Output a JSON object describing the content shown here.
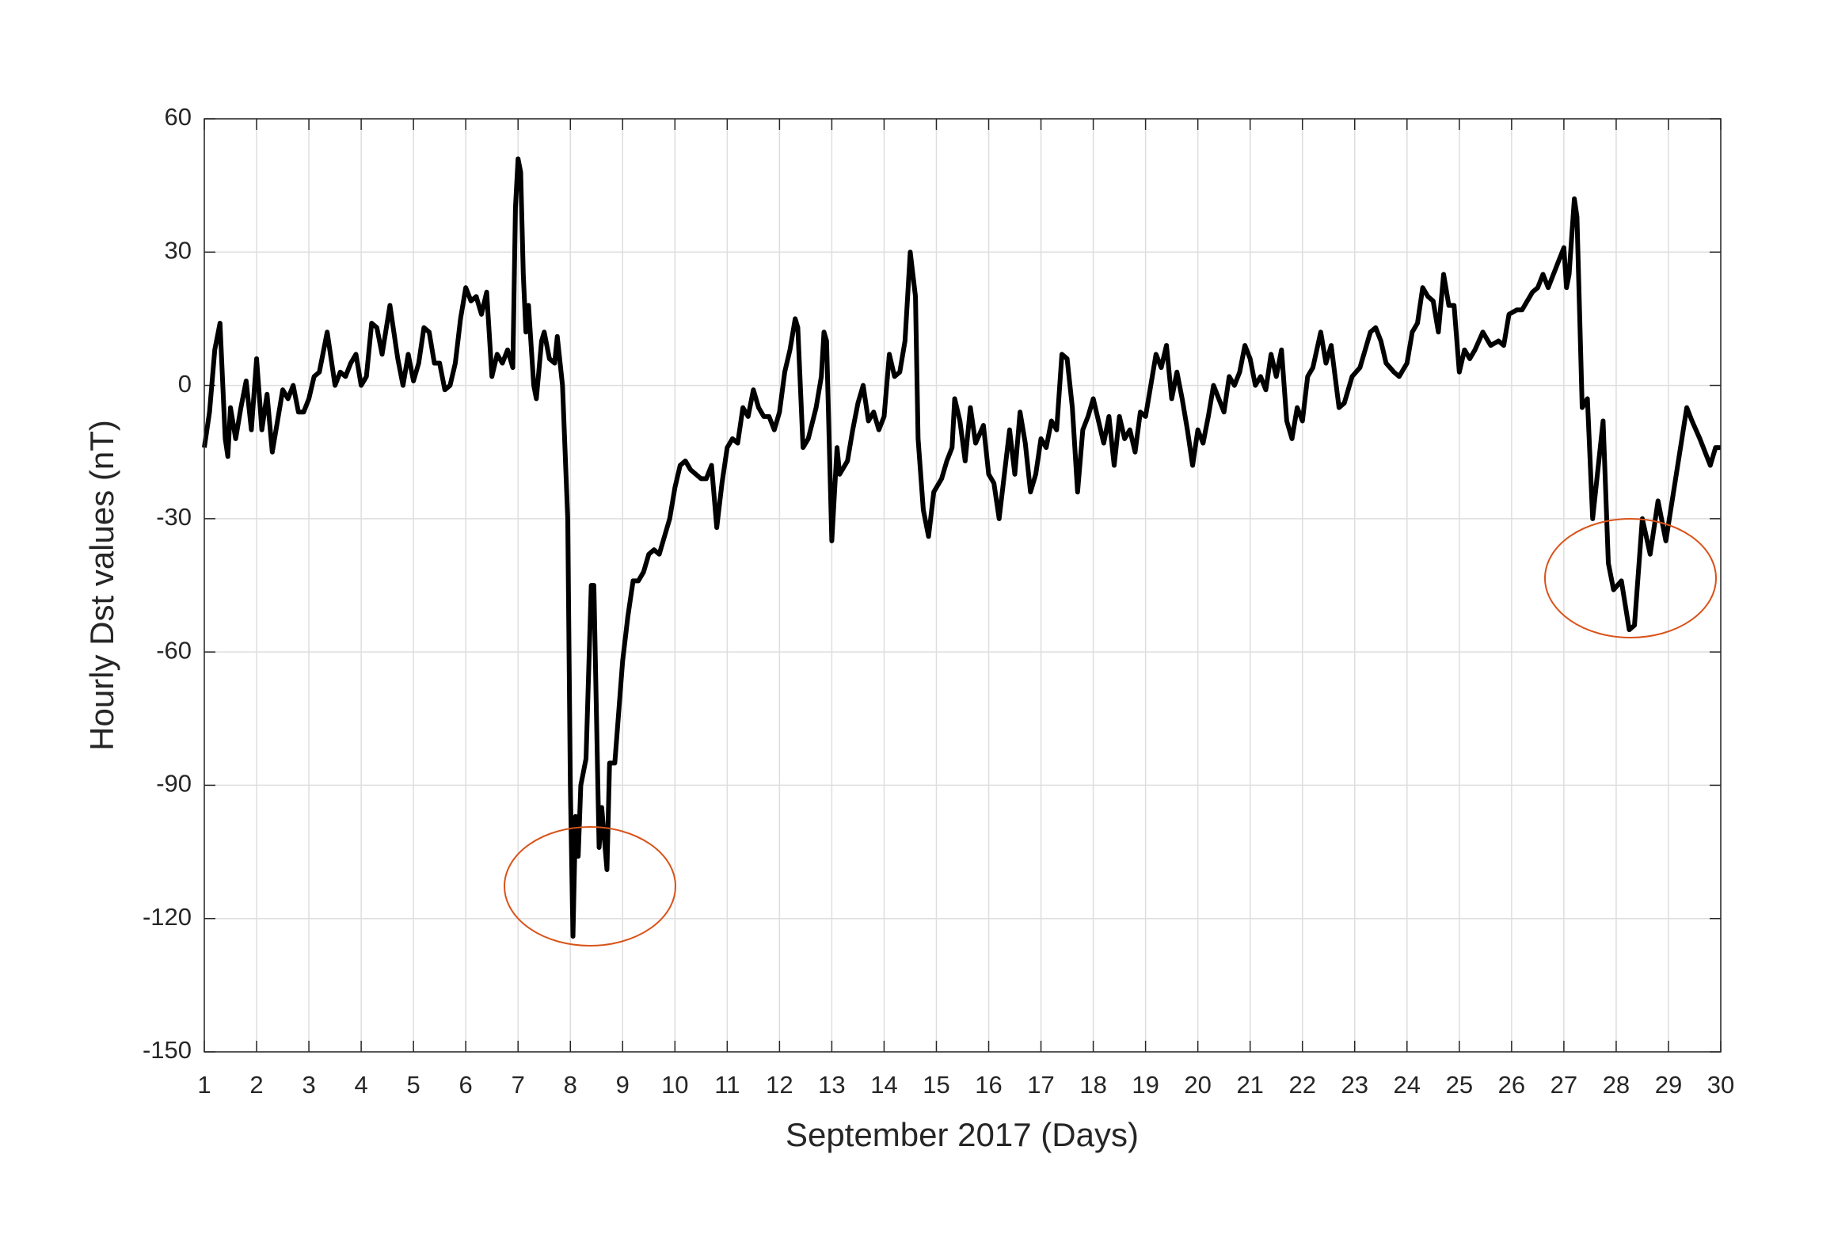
{
  "chart_data": {
    "type": "line",
    "x_label": "September 2017 (Days)",
    "y_label": "Hourly Dst values  (nT)",
    "xlim": [
      1,
      30
    ],
    "xticks": [
      1,
      2,
      3,
      4,
      5,
      6,
      7,
      8,
      9,
      10,
      11,
      12,
      13,
      14,
      15,
      16,
      17,
      18,
      19,
      20,
      21,
      22,
      23,
      24,
      25,
      26,
      27,
      28,
      29,
      30
    ],
    "ylim": [
      -150,
      60
    ],
    "yticks": [
      -150,
      -120,
      -90,
      -60,
      -30,
      0,
      30,
      60
    ],
    "grid": true,
    "series": [
      {
        "color": "#000000",
        "x": [
          1.0,
          1.1,
          1.2,
          1.3,
          1.4,
          1.45,
          1.5,
          1.6,
          1.7,
          1.8,
          1.9,
          2.0,
          2.1,
          2.2,
          2.3,
          2.4,
          2.5,
          2.6,
          2.7,
          2.8,
          2.9,
          3.0,
          3.1,
          3.2,
          3.35,
          3.5,
          3.6,
          3.7,
          3.8,
          3.9,
          4.0,
          4.1,
          4.2,
          4.3,
          4.4,
          4.55,
          4.7,
          4.8,
          4.9,
          5.0,
          5.1,
          5.2,
          5.3,
          5.4,
          5.5,
          5.6,
          5.7,
          5.8,
          5.9,
          6.0,
          6.1,
          6.2,
          6.3,
          6.4,
          6.5,
          6.6,
          6.7,
          6.8,
          6.9,
          6.95,
          7.0,
          7.05,
          7.1,
          7.15,
          7.2,
          7.3,
          7.35,
          7.45,
          7.5,
          7.6,
          7.7,
          7.75,
          7.85,
          7.95,
          8.0,
          8.05,
          8.1,
          8.15,
          8.2,
          8.3,
          8.4,
          8.45,
          8.55,
          8.6,
          8.7,
          8.75,
          8.85,
          9.0,
          9.1,
          9.2,
          9.3,
          9.4,
          9.5,
          9.6,
          9.7,
          9.8,
          9.9,
          10.0,
          10.1,
          10.2,
          10.3,
          10.4,
          10.5,
          10.6,
          10.7,
          10.8,
          10.9,
          11.0,
          11.1,
          11.2,
          11.3,
          11.4,
          11.5,
          11.6,
          11.7,
          11.8,
          11.9,
          12.0,
          12.1,
          12.2,
          12.3,
          12.35,
          12.45,
          12.55,
          12.7,
          12.8,
          12.85,
          12.9,
          13.0,
          13.1,
          13.15,
          13.3,
          13.4,
          13.5,
          13.6,
          13.7,
          13.8,
          13.9,
          14.0,
          14.1,
          14.2,
          14.3,
          14.4,
          14.5,
          14.6,
          14.65,
          14.75,
          14.85,
          14.95,
          15.1,
          15.2,
          15.3,
          15.35,
          15.45,
          15.55,
          15.65,
          15.75,
          15.9,
          16.0,
          16.1,
          16.2,
          16.3,
          16.4,
          16.5,
          16.6,
          16.7,
          16.8,
          16.9,
          17.0,
          17.1,
          17.2,
          17.3,
          17.4,
          17.5,
          17.6,
          17.7,
          17.8,
          17.9,
          18.0,
          18.1,
          18.2,
          18.3,
          18.4,
          18.5,
          18.6,
          18.7,
          18.8,
          18.9,
          19.0,
          19.1,
          19.2,
          19.3,
          19.4,
          19.5,
          19.6,
          19.7,
          19.8,
          19.9,
          20.0,
          20.1,
          20.2,
          20.3,
          20.4,
          20.5,
          20.6,
          20.7,
          20.8,
          20.9,
          21.0,
          21.1,
          21.2,
          21.3,
          21.4,
          21.5,
          21.6,
          21.7,
          21.8,
          21.9,
          22.0,
          22.1,
          22.2,
          22.35,
          22.45,
          22.55,
          22.7,
          22.8,
          22.95,
          23.1,
          23.2,
          23.3,
          23.4,
          23.5,
          23.6,
          23.75,
          23.85,
          24.0,
          24.1,
          24.2,
          24.3,
          24.4,
          24.5,
          24.6,
          24.7,
          24.8,
          24.9,
          25.0,
          25.1,
          25.2,
          25.3,
          25.45,
          25.6,
          25.75,
          25.85,
          25.95,
          26.1,
          26.2,
          26.3,
          26.4,
          26.5,
          26.6,
          26.7,
          26.8,
          26.9,
          27.0,
          27.05,
          27.1,
          27.2,
          27.25,
          27.35,
          27.45,
          27.55,
          27.75,
          27.85,
          27.95,
          28.1,
          28.25,
          28.35,
          28.5,
          28.65,
          28.8,
          28.95,
          29.15,
          29.35,
          29.45,
          29.6,
          29.8,
          29.9,
          30.0
        ],
        "values": [
          -14,
          -6,
          8,
          14,
          -12,
          -16,
          -5,
          -12,
          -5,
          1,
          -10,
          6,
          -10,
          -2,
          -15,
          -8,
          -1,
          -3,
          0,
          -6,
          -6,
          -3,
          2,
          3,
          12,
          0,
          3,
          2,
          5,
          7,
          0,
          2,
          14,
          13,
          7,
          18,
          6,
          0,
          7,
          1,
          5,
          13,
          12,
          5,
          5,
          -1,
          0,
          5,
          15,
          22,
          19,
          20,
          16,
          21,
          2,
          7,
          5,
          8,
          4,
          40,
          51,
          48,
          25,
          12,
          18,
          0,
          -3,
          10,
          12,
          6,
          5,
          11,
          0,
          -30,
          -90,
          -124,
          -97,
          -106,
          -90,
          -84,
          -45,
          -45,
          -104,
          -95,
          -109,
          -85,
          -85,
          -62,
          -52,
          -44,
          -44,
          -42,
          -38,
          -37,
          -38,
          -34,
          -30,
          -23,
          -18,
          -17,
          -19,
          -20,
          -21,
          -21,
          -18,
          -32,
          -22,
          -14,
          -12,
          -13,
          -5,
          -7,
          -1,
          -5,
          -7,
          -7,
          -10,
          -6,
          3,
          8,
          15,
          13,
          -14,
          -12,
          -5,
          2,
          12,
          10,
          -35,
          -14,
          -20,
          -17,
          -10,
          -4,
          0,
          -8,
          -6,
          -10,
          -7,
          7,
          2,
          3,
          10,
          30,
          20,
          -12,
          -28,
          -34,
          -24,
          -21,
          -17,
          -14,
          -3,
          -8,
          -17,
          -5,
          -13,
          -9,
          -20,
          -22,
          -30,
          -20,
          -10,
          -20,
          -6,
          -13,
          -24,
          -20,
          -12,
          -14,
          -8,
          -10,
          7,
          6,
          -5,
          -24,
          -10,
          -7,
          -3,
          -8,
          -13,
          -7,
          -18,
          -7,
          -12,
          -10,
          -15,
          -6,
          -7,
          0,
          7,
          4,
          9,
          -3,
          3,
          -3,
          -10,
          -18,
          -10,
          -13,
          -7,
          0,
          -3,
          -6,
          2,
          0,
          3,
          9,
          6,
          0,
          2,
          -1,
          7,
          2,
          8,
          -8,
          -12,
          -5,
          -8,
          2,
          4,
          12,
          5,
          9,
          -5,
          -4,
          2,
          4,
          8,
          12,
          13,
          10,
          5,
          3,
          2,
          5,
          12,
          14,
          22,
          20,
          19,
          12,
          25,
          18,
          18,
          3,
          8,
          6,
          8,
          12,
          9,
          10,
          9,
          16,
          17,
          17,
          19,
          21,
          22,
          25,
          22,
          25,
          28,
          31,
          22,
          25,
          42,
          38,
          -5,
          -3,
          -30,
          -8,
          -40,
          -46,
          -44,
          -55,
          -54,
          -30,
          -38,
          -26,
          -35,
          -20,
          -5,
          -8,
          -12,
          -18,
          -14,
          -14
        ]
      }
    ]
  }
}
